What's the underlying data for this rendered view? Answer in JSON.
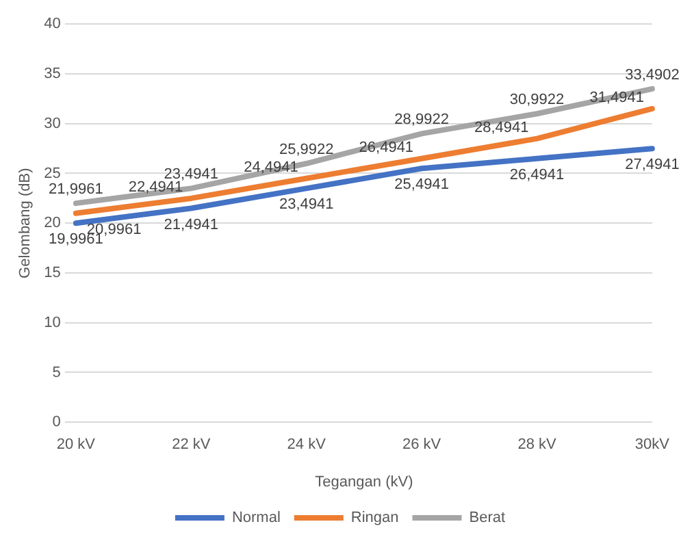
{
  "chart_data": {
    "type": "line",
    "xlabel": "Tegangan (kV)",
    "ylabel": "Gelombang (dB)",
    "categories": [
      "20 kV",
      "22 kV",
      "24 kV",
      "26 kV",
      "28 kV",
      "30kV"
    ],
    "series": [
      {
        "name": "Normal",
        "color": "#4472c4",
        "values": [
          19.9961,
          21.4941,
          23.4941,
          25.4941,
          26.4941,
          27.4941
        ],
        "value_labels": [
          "19,9961",
          "21,4941",
          "23,4941",
          "25,4941",
          "26,4941",
          "27,4941"
        ]
      },
      {
        "name": "Ringan",
        "color": "#ed7d31",
        "values": [
          20.9961,
          22.4941,
          24.4941,
          26.4941,
          28.4941,
          31.4941
        ],
        "value_labels": [
          "20,9961",
          "22,4941",
          "24,4941",
          "26,4941",
          "28,4941",
          "31,4941"
        ]
      },
      {
        "name": "Berat",
        "color": "#a5a5a5",
        "values": [
          21.9961,
          23.4941,
          25.9922,
          28.9922,
          30.9922,
          33.4902
        ],
        "value_labels": [
          "21,9961",
          "23,4941",
          "25,9922",
          "28,9922",
          "30,9922",
          "33,4902"
        ]
      }
    ],
    "ylim": [
      0,
      40
    ],
    "yticks": [
      0,
      5,
      10,
      15,
      20,
      25,
      30,
      35,
      40
    ],
    "grid": "y",
    "legend": "bottom",
    "marker": "none",
    "line_style": "solid"
  }
}
